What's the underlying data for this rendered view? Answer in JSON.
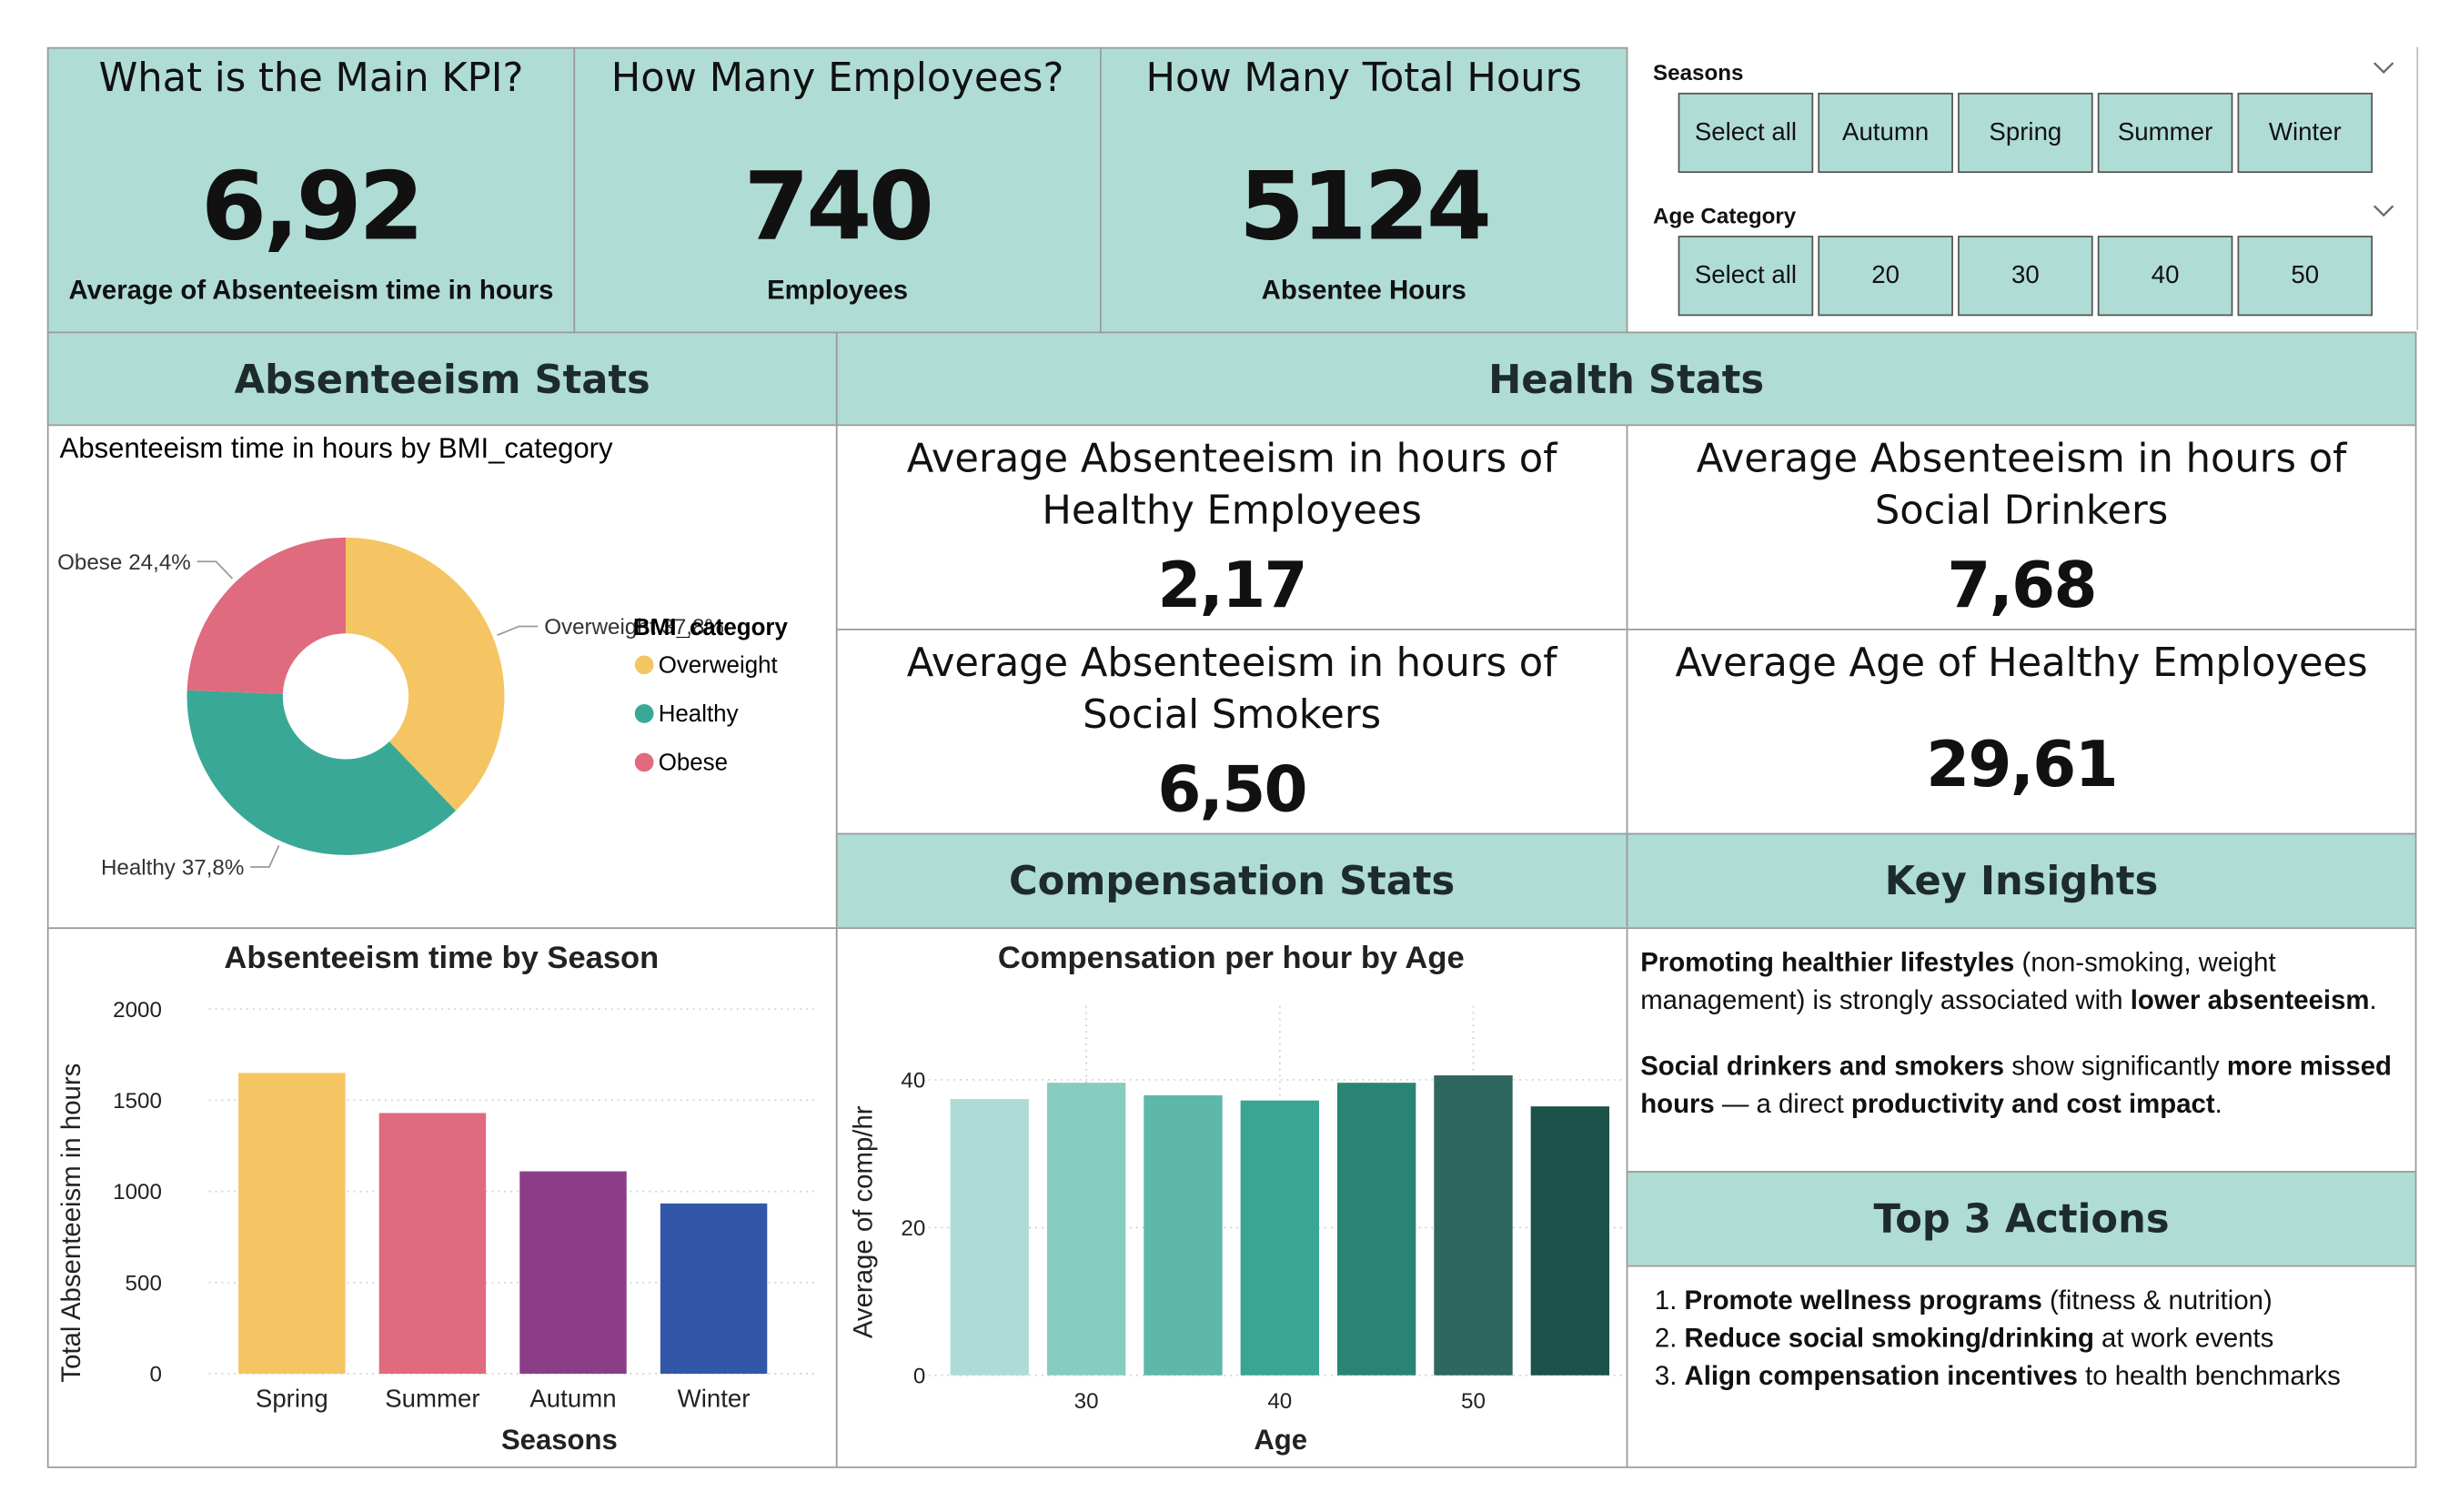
{
  "kpis": [
    {
      "title": "What is the Main KPI?",
      "value": "6,92",
      "label": "Average of Absenteeism time in hours"
    },
    {
      "title": "How Many Employees?",
      "value": "740",
      "label": "Employees"
    },
    {
      "title": "How Many Total Hours",
      "value": "5124",
      "label": "Absentee Hours"
    }
  ],
  "slicers": [
    {
      "title": "Seasons",
      "options": [
        "Select all",
        "Autumn",
        "Spring",
        "Summer",
        "Winter"
      ]
    },
    {
      "title": "Age Category",
      "options": [
        "Select all",
        "20",
        "30",
        "40",
        "50"
      ]
    }
  ],
  "sections": {
    "absenteeism": "Absenteeism Stats",
    "health": "Health Stats",
    "compensation": "Compensation Stats",
    "insights": "Key Insights",
    "actions": "Top 3 Actions"
  },
  "health_cards": [
    {
      "title": "Average Absenteeism in hours of Healthy Employees",
      "value": "2,17"
    },
    {
      "title": "Average Absenteeism in hours of Social Drinkers",
      "value": "7,68"
    },
    {
      "title": "Average Absenteeism in hours of Social Smokers",
      "value": "6,50"
    },
    {
      "title": "Average Age of Healthy Employees",
      "value": "29,61"
    }
  ],
  "key_insights": [
    [
      {
        "text": "Promoting healthier lifestyles",
        "bold": true
      },
      {
        "text": " (non-smoking, weight management) is strongly associated with ",
        "bold": false
      },
      {
        "text": "lower absenteeism",
        "bold": true
      },
      {
        "text": ".",
        "bold": false
      }
    ],
    [
      {
        "text": "Social drinkers and smokers",
        "bold": true
      },
      {
        "text": " show significantly ",
        "bold": false
      },
      {
        "text": "more missed hours",
        "bold": true
      },
      {
        "text": " — a direct ",
        "bold": false
      },
      {
        "text": "productivity and cost impact",
        "bold": true
      },
      {
        "text": ".",
        "bold": false
      }
    ]
  ],
  "top_actions": [
    {
      "bold": "Promote wellness programs",
      "text": " (fitness & nutrition)"
    },
    {
      "bold": "Reduce social smoking/drinking",
      "text": " at work events"
    },
    {
      "bold": "Align compensation incentives",
      "text": " to health benchmarks"
    }
  ],
  "chart_data": [
    {
      "type": "pie",
      "donut": true,
      "title": "Absenteeism time in hours by BMI_category",
      "legend_title": "BMI_category",
      "categories": [
        "Overweight",
        "Healthy",
        "Obese"
      ],
      "values": [
        37.8,
        37.8,
        24.4
      ],
      "value_labels": [
        "37,8%",
        "37,8%",
        "24,4%"
      ],
      "colors": [
        "#F5C563",
        "#3AA897",
        "#E06B7E"
      ]
    },
    {
      "type": "bar",
      "title": "Absenteeism time by Season",
      "x_label": "Seasons",
      "y_label": "Total Absenteeism in hours",
      "categories": [
        "Spring",
        "Summer",
        "Autumn",
        "Winter"
      ],
      "values": [
        1650,
        1430,
        1110,
        934
      ],
      "colors": [
        "#F5C563",
        "#E06B7E",
        "#8B3D88",
        "#3357A8"
      ],
      "ylim": [
        0,
        2000
      ],
      "yticks": [
        0,
        500,
        1000,
        1500,
        2000
      ],
      "grid": true
    },
    {
      "type": "bar",
      "title": "Compensation per hour by Age",
      "x_label": "Age",
      "y_label": "Average of comp/hr",
      "categories": [
        null,
        "30",
        null,
        "40",
        null,
        "50",
        null
      ],
      "values": [
        37.4,
        39.6,
        37.9,
        37.2,
        39.6,
        40.6,
        36.4
      ],
      "colors": [
        "#ADDCD6",
        "#86CCC0",
        "#5DB8A8",
        "#39A594",
        "#2A8473",
        "#2E6660",
        "#1C5249"
      ],
      "ylim": [
        0,
        50
      ],
      "yticks": [
        0,
        20,
        40
      ],
      "grid": true
    }
  ]
}
